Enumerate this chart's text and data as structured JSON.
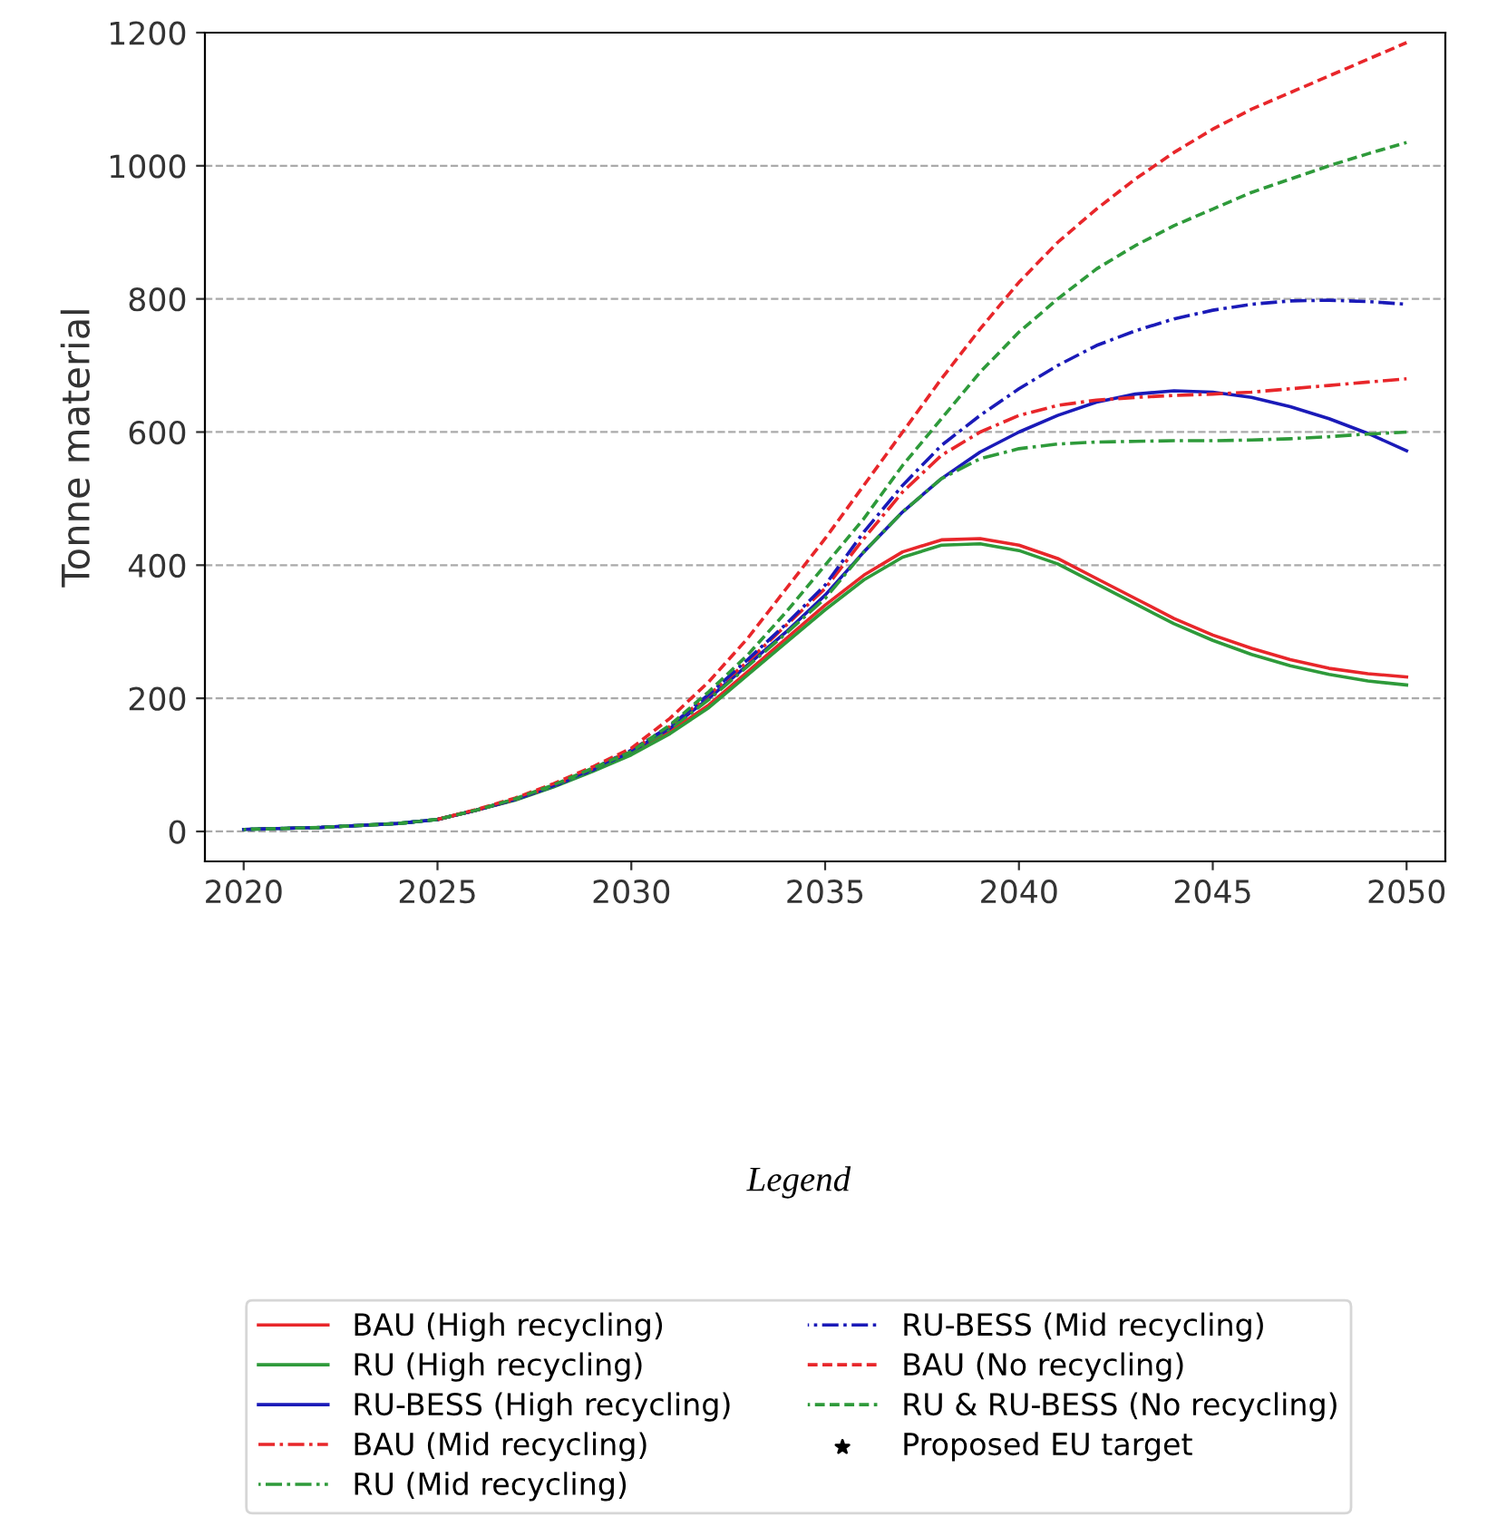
{
  "chart_data": {
    "type": "line",
    "ylabel": "Tonne material",
    "legend_title": "Legend",
    "x": [
      2020,
      2022,
      2024,
      2025,
      2026,
      2027,
      2028,
      2029,
      2030,
      2031,
      2032,
      2033,
      2034,
      2035,
      2036,
      2037,
      2038,
      2039,
      2040,
      2041,
      2042,
      2043,
      2044,
      2045,
      2046,
      2047,
      2048,
      2049,
      2050
    ],
    "xlim": [
      2019,
      2051
    ],
    "xticks": [
      2020,
      2025,
      2030,
      2035,
      2040,
      2045,
      2050
    ],
    "ylim": [
      -45,
      1200
    ],
    "yticks": [
      0,
      200,
      400,
      600,
      800,
      1000,
      1200
    ],
    "grid": "y",
    "legend": "bottom",
    "marker": "none",
    "series": [
      {
        "name": "BAU (High recycling)",
        "color": "#e8262a",
        "line_style": "solid",
        "values": [
          null,
          null,
          null,
          18,
          32,
          48,
          68,
          92,
          118,
          150,
          190,
          240,
          290,
          340,
          385,
          420,
          438,
          440,
          430,
          410,
          380,
          350,
          320,
          295,
          275,
          258,
          245,
          237,
          232
        ]
      },
      {
        "name": "RU (High recycling)",
        "color": "#2e9a3a",
        "line_style": "solid",
        "values": [
          3,
          6,
          12,
          18,
          32,
          47,
          67,
          90,
          115,
          147,
          186,
          235,
          284,
          333,
          378,
          412,
          430,
          432,
          422,
          402,
          372,
          342,
          312,
          287,
          266,
          249,
          236,
          226,
          220
        ]
      },
      {
        "name": "RU-BESS (High recycling)",
        "color": "#1a1ab8",
        "line_style": "solid",
        "values": [
          3,
          6,
          12,
          18,
          32,
          48,
          68,
          92,
          120,
          155,
          200,
          250,
          300,
          355,
          420,
          480,
          530,
          570,
          600,
          625,
          645,
          657,
          662,
          660,
          652,
          638,
          620,
          598,
          572
        ]
      },
      {
        "name": "BAU (Mid recycling)",
        "color": "#e8262a",
        "line_style": "dashdot",
        "values": [
          null,
          null,
          null,
          18,
          32,
          48,
          69,
          94,
          122,
          158,
          205,
          255,
          310,
          365,
          440,
          510,
          565,
          600,
          625,
          640,
          648,
          652,
          655,
          657,
          660,
          665,
          670,
          675,
          680
        ]
      },
      {
        "name": "RU (Mid recycling)",
        "color": "#2e9a3a",
        "line_style": "dashdot",
        "values": [
          3,
          6,
          12,
          18,
          32,
          48,
          68,
          92,
          120,
          154,
          198,
          248,
          298,
          350,
          420,
          480,
          530,
          560,
          575,
          582,
          585,
          586,
          587,
          587,
          588,
          590,
          593,
          597,
          600
        ]
      },
      {
        "name": "RU-BESS (Mid recycling)",
        "color": "#1a1ab8",
        "line_style": "dashdot",
        "values": [
          3,
          6,
          12,
          18,
          32,
          48,
          69,
          94,
          122,
          158,
          206,
          258,
          312,
          370,
          450,
          520,
          580,
          625,
          665,
          700,
          730,
          752,
          770,
          783,
          792,
          797,
          798,
          796,
          792
        ]
      },
      {
        "name": "BAU (No recycling)",
        "color": "#e8262a",
        "line_style": "dashed",
        "values": [
          null,
          null,
          null,
          18,
          33,
          50,
          72,
          97,
          125,
          170,
          225,
          290,
          365,
          440,
          520,
          600,
          680,
          755,
          825,
          885,
          935,
          980,
          1020,
          1055,
          1085,
          1110,
          1135,
          1160,
          1185
        ]
      },
      {
        "name": "RU & RU-BESS (No recycling)",
        "color": "#2e9a3a",
        "line_style": "dashed",
        "values": [
          3,
          6,
          12,
          18,
          32,
          49,
          70,
          95,
          120,
          160,
          210,
          265,
          330,
          400,
          470,
          550,
          620,
          690,
          750,
          800,
          845,
          880,
          910,
          935,
          960,
          980,
          1000,
          1018,
          1035
        ]
      },
      {
        "name": "Proposed EU target",
        "type": "scatter",
        "marker": "star",
        "color": "#000000",
        "values": [
          null,
          null,
          null,
          null,
          null,
          null,
          null,
          null,
          null,
          null,
          null,
          null,
          null,
          null,
          null,
          null,
          null,
          null,
          null,
          null,
          null,
          null,
          null,
          null,
          null,
          null,
          null,
          null,
          null
        ]
      }
    ]
  }
}
